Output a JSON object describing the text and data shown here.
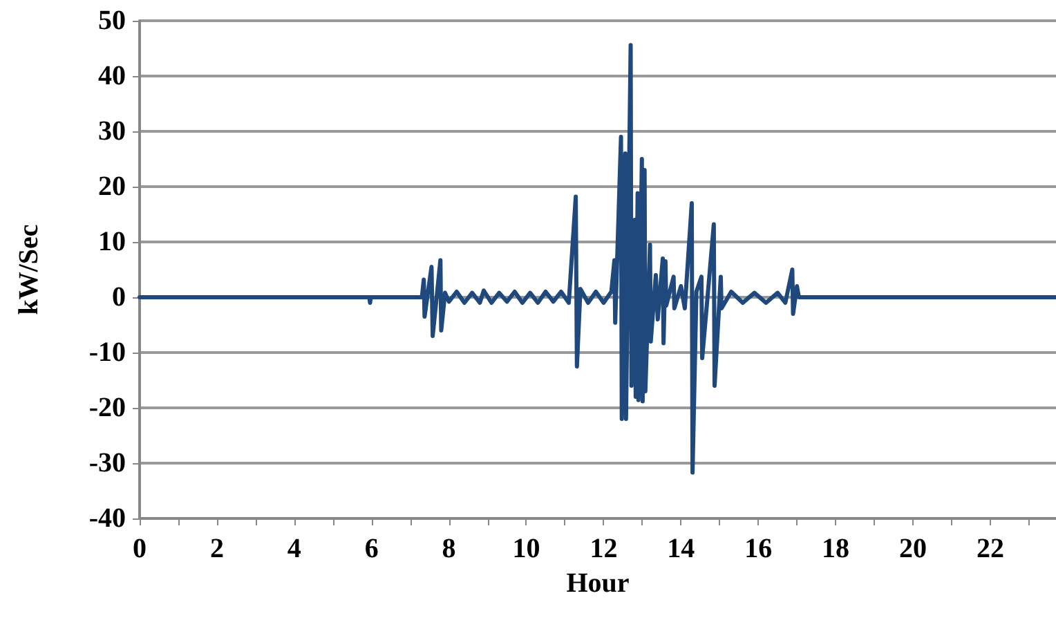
{
  "chart_data": {
    "type": "line",
    "xlabel": "Hour",
    "ylabel": "kW/Sec",
    "x": [
      0,
      5.94,
      5.96,
      5.98,
      7.3,
      7.35,
      7.37,
      7.55,
      7.58,
      7.78,
      7.8,
      7.9,
      8.0,
      8.2,
      8.4,
      8.6,
      8.8,
      8.9,
      9.1,
      9.3,
      9.5,
      9.7,
      9.9,
      10.1,
      10.3,
      10.5,
      10.7,
      10.9,
      11.1,
      11.28,
      11.31,
      11.4,
      11.6,
      11.8,
      12.0,
      12.2,
      12.28,
      12.3,
      12.45,
      12.47,
      12.56,
      12.58,
      12.7,
      12.72,
      12.81,
      12.83,
      12.88,
      12.9,
      12.99,
      13.01,
      13.06,
      13.08,
      13.2,
      13.22,
      13.35,
      13.4,
      13.53,
      13.55,
      13.6,
      13.62,
      13.81,
      13.83,
      14.0,
      14.1,
      14.28,
      14.3,
      14.4,
      14.53,
      14.55,
      14.7,
      14.85,
      14.87,
      15.03,
      15.05,
      15.3,
      15.6,
      15.9,
      16.2,
      16.5,
      16.7,
      16.88,
      16.9,
      17.0,
      17.05,
      23.7
    ],
    "series": [
      {
        "color": "#1f497d",
        "values": [
          0,
          0,
          -1,
          0,
          0,
          3.2,
          -3.5,
          5.5,
          -7,
          6.7,
          -6,
          0.8,
          -0.8,
          1,
          -1,
          0.8,
          -1,
          1.2,
          -1,
          0.8,
          -0.8,
          1,
          -1,
          0.8,
          -1,
          1,
          -0.8,
          1,
          -1,
          18.2,
          -12.5,
          1.5,
          -1,
          1,
          -1,
          1,
          6.7,
          -4.6,
          29,
          -22,
          26,
          -22,
          45.6,
          -16,
          14,
          -18,
          18.8,
          -18.6,
          25,
          -18.8,
          23,
          -17,
          9.5,
          -8,
          4,
          -4,
          7,
          -8.3,
          6.5,
          -1.5,
          3.7,
          -2,
          2,
          -2,
          17,
          -31.7,
          1,
          3.7,
          -11,
          1,
          13.2,
          -16,
          3.7,
          -2,
          1,
          -1,
          0.8,
          -1,
          0.8,
          -1,
          5,
          -3,
          2,
          0,
          0
        ]
      }
    ],
    "xlim": [
      0,
      23.7
    ],
    "xticks": [
      0,
      {
        "value": 1,
        "label": null
      },
      2,
      {
        "value": 3,
        "label": null
      },
      4,
      {
        "value": 5,
        "label": null
      },
      6,
      {
        "value": 7,
        "label": null
      },
      8,
      {
        "value": 9,
        "label": null
      },
      10,
      {
        "value": 11,
        "label": null
      },
      12,
      {
        "value": 13,
        "label": null
      },
      14,
      {
        "value": 15,
        "label": null
      },
      16,
      {
        "value": 17,
        "label": null
      },
      18,
      {
        "value": 19,
        "label": null
      },
      20,
      {
        "value": 21,
        "label": null
      },
      22,
      {
        "value": 23,
        "label": null
      }
    ],
    "ylim": [
      -40,
      50
    ],
    "yticks": [
      -40,
      -30,
      -20,
      -10,
      0,
      10,
      20,
      30,
      40,
      50
    ],
    "grid": "y",
    "marker": "none",
    "line_style": "solid"
  }
}
